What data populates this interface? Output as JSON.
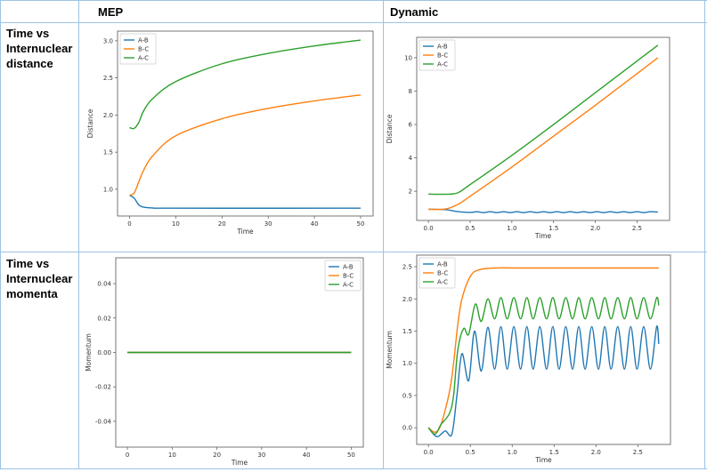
{
  "table": {
    "headers": [
      "",
      "MEP",
      "Dynamic"
    ],
    "rows": [
      {
        "label": "Time vs Internuclear distance"
      },
      {
        "label": "Time vs Internuclear momenta"
      }
    ]
  },
  "colors": {
    "A-B": "#1f77b4",
    "B-C": "#ff7f0e",
    "A-C": "#2ca02c",
    "border": "#9dc3e6"
  },
  "chart_data": [
    {
      "id": "mep-distance",
      "type": "line",
      "title": "",
      "xlabel": "Time",
      "ylabel": "Distance",
      "xlim": [
        -2.6,
        52.7
      ],
      "ylim": [
        0.64,
        3.13
      ],
      "xticks": [
        0,
        10,
        20,
        30,
        40,
        50
      ],
      "yticks": [
        1.0,
        1.5,
        2.0,
        2.5,
        3.0
      ],
      "ytick_decimals": 1,
      "legend": "upper-left",
      "grid": false,
      "series": [
        {
          "name": "A-B",
          "color": "#1f77b4",
          "points": [
            [
              0,
              0.92
            ],
            [
              1,
              0.88
            ],
            [
              2,
              0.79
            ],
            [
              3,
              0.76
            ],
            [
              5,
              0.748
            ],
            [
              10,
              0.745
            ],
            [
              50,
              0.745
            ]
          ]
        },
        {
          "name": "B-C",
          "color": "#ff7f0e",
          "points": [
            [
              0,
              0.92
            ],
            [
              1,
              0.95
            ],
            [
              2,
              1.1
            ],
            [
              3,
              1.25
            ],
            [
              5,
              1.45
            ],
            [
              10,
              1.72
            ],
            [
              20,
              1.95
            ],
            [
              30,
              2.09
            ],
            [
              40,
              2.19
            ],
            [
              50,
              2.27
            ]
          ]
        },
        {
          "name": "A-C",
          "color": "#2ca02c",
          "points": [
            [
              0,
              1.83
            ],
            [
              1,
              1.82
            ],
            [
              2,
              1.9
            ],
            [
              3,
              2.05
            ],
            [
              5,
              2.22
            ],
            [
              10,
              2.45
            ],
            [
              20,
              2.69
            ],
            [
              30,
              2.83
            ],
            [
              40,
              2.93
            ],
            [
              50,
              3.01
            ]
          ]
        }
      ]
    },
    {
      "id": "dynamic-distance",
      "type": "line",
      "title": "",
      "xlabel": "Time",
      "ylabel": "Distance",
      "xlim": [
        -0.14,
        2.89
      ],
      "ylim": [
        0.25,
        11.22
      ],
      "xticks": [
        0.0,
        0.5,
        1.0,
        1.5,
        2.0,
        2.5
      ],
      "xtick_decimals": 1,
      "yticks": [
        2,
        4,
        6,
        8,
        10
      ],
      "legend": "upper-left",
      "grid": false,
      "series": [
        {
          "name": "A-B",
          "color": "#1f77b4",
          "points": [
            [
              0,
              0.92
            ],
            [
              0.2,
              0.9
            ],
            [
              0.35,
              0.78
            ],
            [
              0.5,
              0.73
            ],
            [
              0.58,
              0.77
            ],
            [
              0.66,
              0.72
            ],
            [
              0.74,
              0.77
            ],
            [
              0.82,
              0.72
            ],
            [
              0.9,
              0.77
            ],
            [
              0.98,
              0.72
            ],
            [
              1.06,
              0.77
            ],
            [
              1.14,
              0.72
            ],
            [
              1.22,
              0.77
            ],
            [
              1.3,
              0.72
            ],
            [
              1.38,
              0.77
            ],
            [
              1.46,
              0.72
            ],
            [
              1.54,
              0.77
            ],
            [
              1.62,
              0.72
            ],
            [
              1.7,
              0.77
            ],
            [
              1.78,
              0.72
            ],
            [
              1.86,
              0.77
            ],
            [
              1.94,
              0.72
            ],
            [
              2.02,
              0.77
            ],
            [
              2.1,
              0.72
            ],
            [
              2.18,
              0.77
            ],
            [
              2.26,
              0.72
            ],
            [
              2.34,
              0.77
            ],
            [
              2.42,
              0.72
            ],
            [
              2.5,
              0.77
            ],
            [
              2.58,
              0.72
            ],
            [
              2.66,
              0.77
            ],
            [
              2.75,
              0.75
            ]
          ]
        },
        {
          "name": "B-C",
          "color": "#ff7f0e",
          "points": [
            [
              0,
              0.92
            ],
            [
              0.2,
              0.93
            ],
            [
              0.35,
              1.2
            ],
            [
              0.5,
              1.7
            ],
            [
              1,
              3.45
            ],
            [
              1.5,
              5.3
            ],
            [
              2,
              7.15
            ],
            [
              2.75,
              10.0
            ]
          ]
        },
        {
          "name": "A-C",
          "color": "#2ca02c",
          "points": [
            [
              0,
              1.83
            ],
            [
              0.2,
              1.82
            ],
            [
              0.35,
              1.9
            ],
            [
              0.5,
              2.4
            ],
            [
              1,
              4.15
            ],
            [
              1.5,
              6.0
            ],
            [
              2,
              7.9
            ],
            [
              2.75,
              10.75
            ]
          ]
        }
      ]
    },
    {
      "id": "mep-momentum",
      "type": "line",
      "title": "",
      "xlabel": "Time",
      "ylabel": "Momentum",
      "xlim": [
        -2.6,
        52.7
      ],
      "ylim": [
        -0.055,
        0.055
      ],
      "xticks": [
        0,
        10,
        20,
        30,
        40,
        50
      ],
      "yticks": [
        -0.04,
        -0.02,
        0.0,
        0.02,
        0.04
      ],
      "ytick_decimals": 2,
      "legend": "upper-right",
      "grid": false,
      "series": [
        {
          "name": "A-B",
          "color": "#1f77b4",
          "points": [
            [
              0,
              0
            ],
            [
              50,
              0
            ]
          ]
        },
        {
          "name": "B-C",
          "color": "#ff7f0e",
          "points": [
            [
              0,
              0
            ],
            [
              50,
              0
            ]
          ]
        },
        {
          "name": "A-C",
          "color": "#2ca02c",
          "points": [
            [
              0,
              0
            ],
            [
              50,
              0
            ]
          ]
        }
      ]
    },
    {
      "id": "dynamic-momentum",
      "type": "line",
      "title": "",
      "xlabel": "Time",
      "ylabel": "Momentum",
      "xlim": [
        -0.14,
        2.89
      ],
      "ylim": [
        -0.26,
        2.68
      ],
      "xticks": [
        0.0,
        0.5,
        1.0,
        1.5,
        2.0,
        2.5
      ],
      "xtick_decimals": 1,
      "yticks": [
        0.0,
        0.5,
        1.0,
        1.5,
        2.0,
        2.5
      ],
      "ytick_decimals": 1,
      "legend": "upper-left",
      "grid": false,
      "series": [
        {
          "name": "A-B",
          "color": "#1f77b4",
          "points": [
            [
              0,
              0
            ],
            [
              0.1,
              -0.14
            ],
            [
              0.2,
              -0.05
            ],
            [
              0.28,
              -0.1
            ],
            [
              0.34,
              0.5
            ],
            [
              0.4,
              1.15
            ],
            [
              0.48,
              0.73
            ],
            [
              0.55,
              1.5
            ],
            [
              0.63,
              0.88
            ],
            [
              0.71,
              1.56
            ],
            [
              0.79,
              0.91
            ],
            [
              0.865,
              1.57
            ],
            [
              0.94,
              0.91
            ],
            [
              1.02,
              1.57
            ],
            [
              1.1,
              0.91
            ],
            [
              1.175,
              1.57
            ],
            [
              1.25,
              0.91
            ],
            [
              1.33,
              1.57
            ],
            [
              1.41,
              0.91
            ],
            [
              1.485,
              1.57
            ],
            [
              1.56,
              0.91
            ],
            [
              1.64,
              1.57
            ],
            [
              1.72,
              0.91
            ],
            [
              1.795,
              1.57
            ],
            [
              1.87,
              0.91
            ],
            [
              1.95,
              1.57
            ],
            [
              2.03,
              0.91
            ],
            [
              2.105,
              1.57
            ],
            [
              2.18,
              0.91
            ],
            [
              2.26,
              1.57
            ],
            [
              2.34,
              0.91
            ],
            [
              2.415,
              1.57
            ],
            [
              2.49,
              0.91
            ],
            [
              2.57,
              1.57
            ],
            [
              2.65,
              0.91
            ],
            [
              2.725,
              1.57
            ],
            [
              2.75,
              1.3
            ]
          ]
        },
        {
          "name": "B-C",
          "color": "#ff7f0e",
          "points": [
            [
              0,
              0
            ],
            [
              0.08,
              -0.07
            ],
            [
              0.15,
              0.05
            ],
            [
              0.25,
              0.55
            ],
            [
              0.3,
              1.0
            ],
            [
              0.35,
              1.6
            ],
            [
              0.4,
              2.0
            ],
            [
              0.5,
              2.35
            ],
            [
              0.6,
              2.45
            ],
            [
              0.8,
              2.48
            ],
            [
              1.2,
              2.48
            ],
            [
              2.75,
              2.48
            ]
          ]
        },
        {
          "name": "A-C",
          "color": "#2ca02c",
          "points": [
            [
              0,
              0
            ],
            [
              0.08,
              -0.1
            ],
            [
              0.15,
              0.05
            ],
            [
              0.25,
              0.22
            ],
            [
              0.3,
              0.5
            ],
            [
              0.35,
              1.2
            ],
            [
              0.42,
              1.54
            ],
            [
              0.48,
              1.45
            ],
            [
              0.56,
              1.92
            ],
            [
              0.63,
              1.65
            ],
            [
              0.71,
              2.0
            ],
            [
              0.79,
              1.69
            ],
            [
              0.865,
              2.02
            ],
            [
              0.94,
              1.69
            ],
            [
              1.02,
              2.02
            ],
            [
              1.1,
              1.69
            ],
            [
              1.175,
              2.02
            ],
            [
              1.25,
              1.69
            ],
            [
              1.33,
              2.02
            ],
            [
              1.41,
              1.69
            ],
            [
              1.485,
              2.02
            ],
            [
              1.56,
              1.69
            ],
            [
              1.64,
              2.02
            ],
            [
              1.72,
              1.69
            ],
            [
              1.795,
              2.02
            ],
            [
              1.87,
              1.69
            ],
            [
              1.95,
              2.02
            ],
            [
              2.03,
              1.69
            ],
            [
              2.105,
              2.02
            ],
            [
              2.18,
              1.69
            ],
            [
              2.26,
              2.02
            ],
            [
              2.34,
              1.69
            ],
            [
              2.415,
              2.02
            ],
            [
              2.49,
              1.69
            ],
            [
              2.57,
              2.02
            ],
            [
              2.65,
              1.69
            ],
            [
              2.725,
              2.02
            ],
            [
              2.75,
              1.9
            ]
          ]
        }
      ]
    }
  ]
}
